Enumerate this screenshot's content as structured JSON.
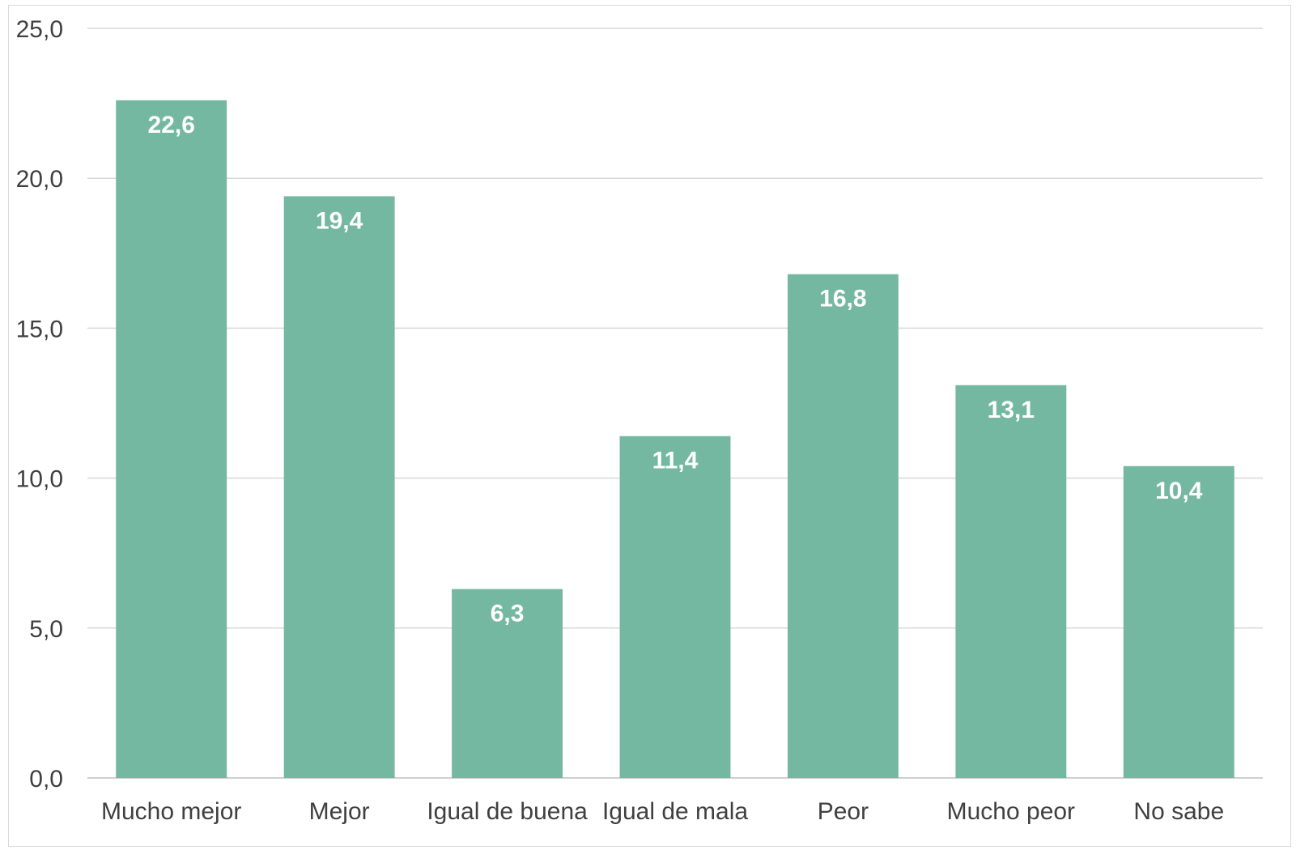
{
  "chart_data": {
    "type": "bar",
    "categories": [
      "Mucho mejor",
      "Mejor",
      "Igual de buena",
      "Igual de mala",
      "Peor",
      "Mucho peor",
      "No sabe"
    ],
    "values": [
      22.6,
      19.4,
      6.3,
      11.4,
      16.8,
      13.1,
      10.4
    ],
    "data_labels": [
      "22,6",
      "19,4",
      "6,3",
      "11,4",
      "16,8",
      "13,1",
      "10,4"
    ],
    "y_ticks": [
      0,
      5,
      10,
      15,
      20,
      25
    ],
    "y_tick_labels": [
      "0,0",
      "5,0",
      "10,0",
      "15,0",
      "20,0",
      "25,0"
    ],
    "ylim": [
      0,
      25
    ],
    "grid": true,
    "legend": "none",
    "bar_color": "#75b8a2",
    "title": "",
    "xlabel": "",
    "ylabel": ""
  }
}
